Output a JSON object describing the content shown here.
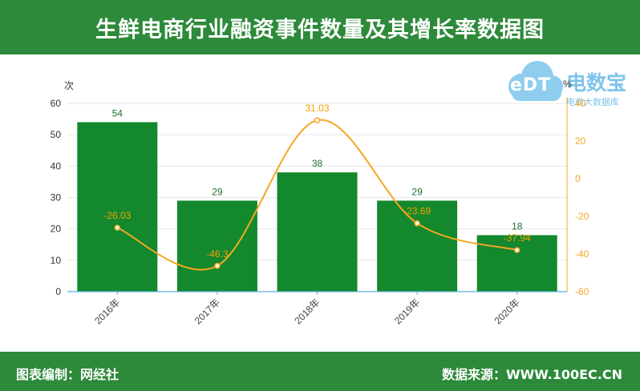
{
  "header": {
    "title": "生鲜电商行业融资事件数量及其增长率数据图"
  },
  "footer": {
    "left": "图表编制：网经社",
    "right": "数据来源：WWW.100EC.CN"
  },
  "logo": {
    "cloud_text": "eDT",
    "brand": "电数宝",
    "tagline": "电商大数据库"
  },
  "colors": {
    "bar": "#14882c",
    "line": "#f5a623",
    "header": "#2d8a3a",
    "axis_right": "#f5a623"
  },
  "chart_data": {
    "type": "bar",
    "categories": [
      "2016年",
      "2017年",
      "2018年",
      "2019年",
      "2020年"
    ],
    "series": [
      {
        "name": "",
        "type": "bar",
        "axis": "left",
        "values": [
          54,
          29,
          38,
          29,
          18
        ]
      },
      {
        "name": "",
        "type": "line",
        "axis": "right",
        "values": [
          -26.03,
          -46.3,
          31.03,
          -23.69,
          -37.94
        ]
      }
    ],
    "y_left": {
      "label": "次",
      "min": 0,
      "max": 60,
      "ticks": [
        0,
        10,
        20,
        30,
        40,
        50,
        60
      ]
    },
    "y_right": {
      "label": "%",
      "min": -60,
      "max": 40,
      "ticks": [
        -60,
        -40,
        -20,
        0,
        20,
        40
      ]
    },
    "grid": true,
    "smooth_line": true
  }
}
